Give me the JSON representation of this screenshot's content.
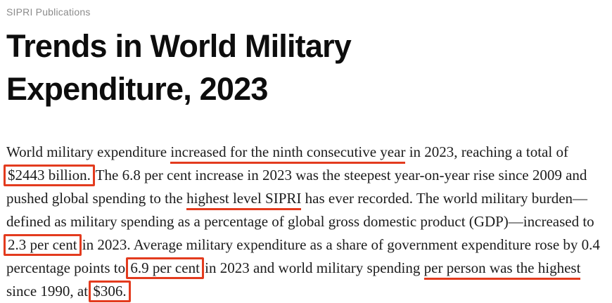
{
  "article": {
    "kicker": "SIPRI Publications",
    "title": "Trends in World Military Expenditure, 2023",
    "body_segments": [
      {
        "style": "plain",
        "text": "World military expenditure "
      },
      {
        "style": "underline",
        "text": "increased for the ninth consecutive year"
      },
      {
        "style": "plain",
        "text": " in 2023, reaching a total of "
      },
      {
        "style": "box",
        "text": "$2443 billion."
      },
      {
        "style": "plain",
        "text": " The 6.8 per cent increase in 2023 was the steepest year-on-year rise since 2009 and pushed global spending to the "
      },
      {
        "style": "underline",
        "text": "highest level SIPRI"
      },
      {
        "style": "plain",
        "text": " has ever recorded. The world military burden—defined as military spending as a percentage of global gross domestic product (GDP)—increased to "
      },
      {
        "style": "box",
        "text": "2.3 per cent"
      },
      {
        "style": "plain",
        "text": " in 2023. Average military expenditure as a share of government expenditure rose by 0.4 percentage points to "
      },
      {
        "style": "box",
        "text": "6.9 per cent"
      },
      {
        "style": "plain",
        "text": " in 2023 and world military spending "
      },
      {
        "style": "underline",
        "text": "per person was the highest"
      },
      {
        "style": "plain",
        "text": " since 1990, at "
      },
      {
        "style": "box",
        "text": "$306."
      }
    ]
  },
  "colors": {
    "annotation_red": "#e33b1e",
    "body_text": "#1c1c1c",
    "title_text": "#0d0d0d",
    "kicker_text": "#8b8b8b",
    "background": "#ffffff"
  }
}
